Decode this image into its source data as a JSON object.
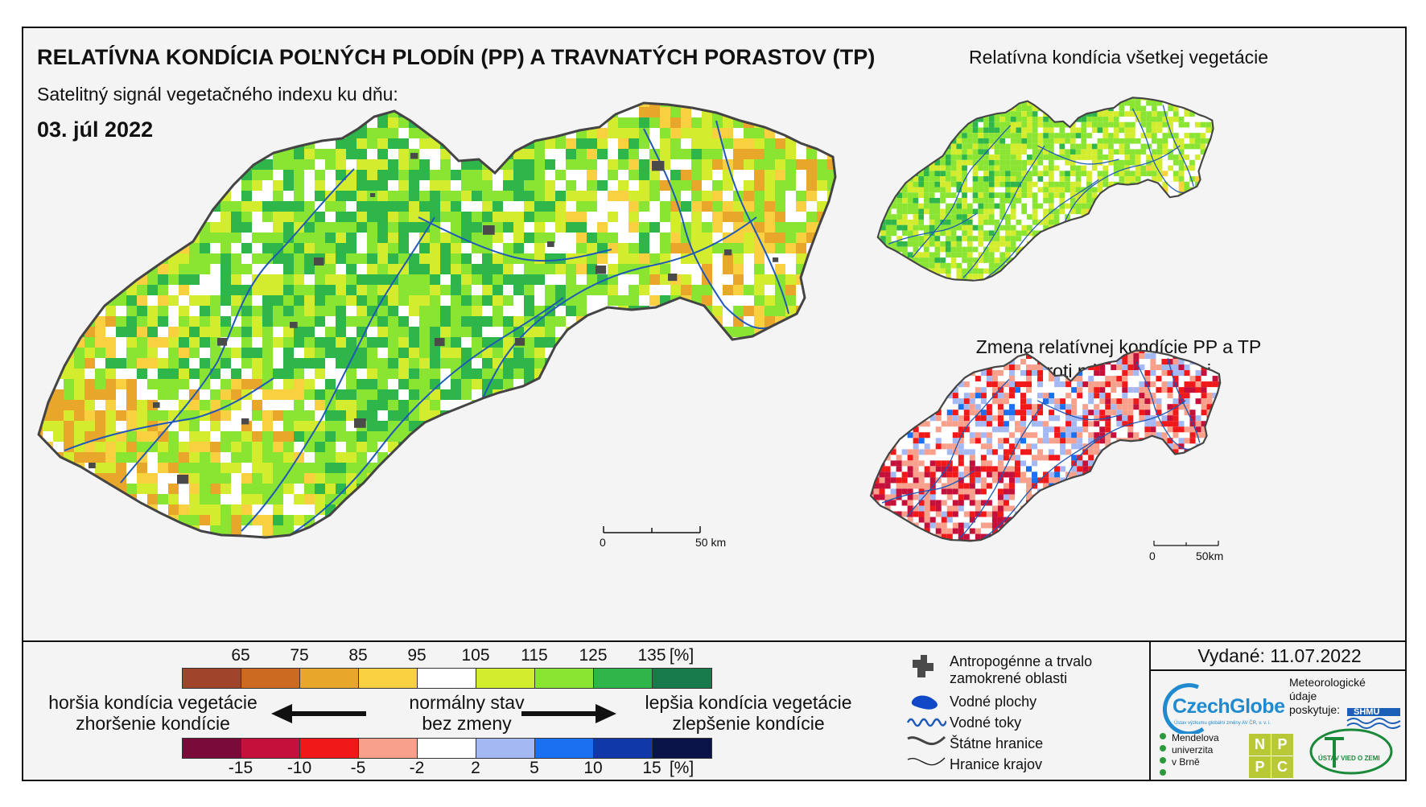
{
  "title": "RELATÍVNA KONDÍCIA POĽNÝCH PLODÍN (PP) A TRAVNATÝCH PORASTOV (TP)",
  "subtitle": "Satelitný signál vegetačného indexu ku dňu:",
  "date": "03. júl 2022",
  "inset_top_title": "Relatívna kondícia všetkej vegetácie",
  "inset_bottom_title_l1": "Zmena relatívnej kondície PP a TP",
  "inset_bottom_title_l2": "oproti minulému týždni",
  "main_scale": {
    "zero": "0",
    "end": "50 km"
  },
  "inset_scale": {
    "zero": "0",
    "end": "50km"
  },
  "colors": {
    "condition": [
      "#a0442b",
      "#cc6a22",
      "#e8a72a",
      "#f8d040",
      "#ffffff",
      "#d4ec2e",
      "#8ae432",
      "#2fb64a",
      "#167a4a"
    ],
    "change": [
      "#7a0a3a",
      "#c4103a",
      "#f01818",
      "#f8a08c",
      "#ffffff",
      "#a4b8f4",
      "#1a70f0",
      "#1038a8",
      "#0a1448"
    ],
    "urban": "#4a4a4a",
    "water": "#1048c8",
    "river": "#1f58b8"
  },
  "legend": {
    "condition_ticks": [
      "65",
      "75",
      "85",
      "95",
      "105",
      "115",
      "125",
      "135",
      "[%]"
    ],
    "change_ticks": [
      "-15",
      "-10",
      "-5",
      "-2",
      "2",
      "5",
      "10",
      "15",
      "[%]"
    ],
    "worse_l1": "horšia kondícia vegetácie",
    "worse_l2": "zhoršenie kondície",
    "normal_l1": "normálny stav",
    "normal_l2": "bez zmeny",
    "better_l1": "lepšia kondícia vegetácie",
    "better_l2": "zlepšenie kondície",
    "items": [
      {
        "icon": "urban-area-icon",
        "label": "Antropogénne a trvalo zamokrené oblasti"
      },
      {
        "icon": "water-body-icon",
        "label": "Vodné plochy"
      },
      {
        "icon": "river-icon",
        "label": "Vodné toky"
      },
      {
        "icon": "state-border-icon",
        "label": "Štátne hranice"
      },
      {
        "icon": "region-border-icon",
        "label": "Hranice krajov"
      }
    ]
  },
  "issued": "Vydané: 11.07.2022",
  "logos": {
    "czechglobe": "CzechGlobe",
    "czechglobe_sub": "Ústav výzkumu globální změny AV ČR, v. v. i.",
    "met_l1": "Meteorologické",
    "met_l2": "údaje",
    "met_l3": "poskytuje:",
    "shmu": "SHMÚ",
    "mendel_l1": "Mendelova",
    "mendel_l2": "univerzita",
    "mendel_l3": "v Brně",
    "nppc": [
      "N",
      "P",
      "P",
      "C"
    ],
    "uvoz": "ÚSTAV VIED O ZEMI"
  }
}
